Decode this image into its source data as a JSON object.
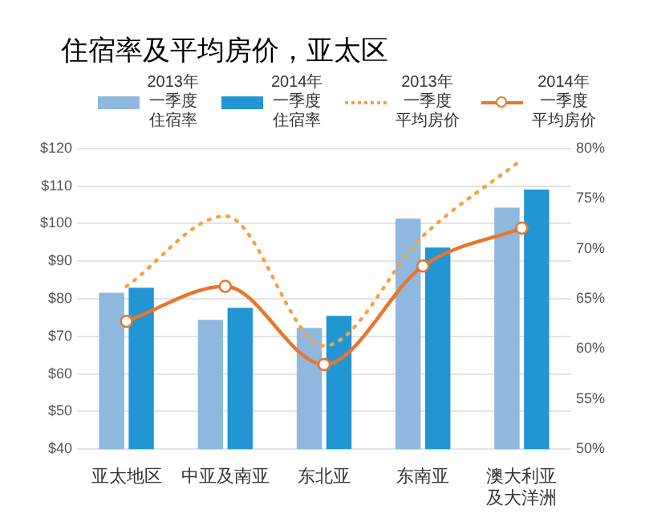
{
  "chart_data": {
    "type": "bar",
    "title": "住宿率及平均房价，亚太区",
    "categories": [
      "亚太地区",
      "中亚及南亚",
      "东北亚",
      "东南亚",
      "澳大利亚及大洋洲"
    ],
    "series": [
      {
        "name": "2013年一季度住宿率",
        "color": "#8fb8de",
        "axis": "y2",
        "values": [
          65.6,
          62.9,
          62.1,
          73.0,
          74.1
        ]
      },
      {
        "name": "2014年一季度住宿率",
        "color": "#2196d3",
        "axis": "y2",
        "values": [
          66.1,
          64.1,
          63.3,
          70.1,
          75.9
        ]
      },
      {
        "name": "2013年一季度平均房价",
        "type": "line",
        "color": "#f5a142",
        "line_style": "dotted",
        "marker": "none",
        "values": [
          83.3,
          102,
          67.5,
          96.7,
          117
        ]
      },
      {
        "name": "2014年一季度平均房价",
        "type": "line",
        "color": "#e8762c",
        "line_style": "solid",
        "marker": "circle",
        "values": [
          74,
          83.3,
          62.5,
          88.7,
          98.8
        ]
      }
    ],
    "ylim": [
      40,
      120
    ],
    "yticks": [
      {
        "value": 40,
        "label": "$40"
      },
      {
        "value": 50,
        "label": "$50"
      },
      {
        "value": 60,
        "label": "$60"
      },
      {
        "value": 70,
        "label": "$70"
      },
      {
        "value": 80,
        "label": "$80"
      },
      {
        "value": 90,
        "label": "$90"
      },
      {
        "value": 100,
        "label": "$100"
      },
      {
        "value": 110,
        "label": "$110"
      },
      {
        "value": 120,
        "label": "$120"
      }
    ],
    "y2lim": [
      50,
      80
    ],
    "y2ticks": [
      {
        "value": 50,
        "label": "50%"
      },
      {
        "value": 55,
        "label": "55%"
      },
      {
        "value": 60,
        "label": "60%"
      },
      {
        "value": 65,
        "label": "65%"
      },
      {
        "value": 70,
        "label": "70%"
      },
      {
        "value": 75,
        "label": "75%"
      },
      {
        "value": 80,
        "label": "80%"
      }
    ],
    "grid": "y",
    "legend": "top"
  }
}
